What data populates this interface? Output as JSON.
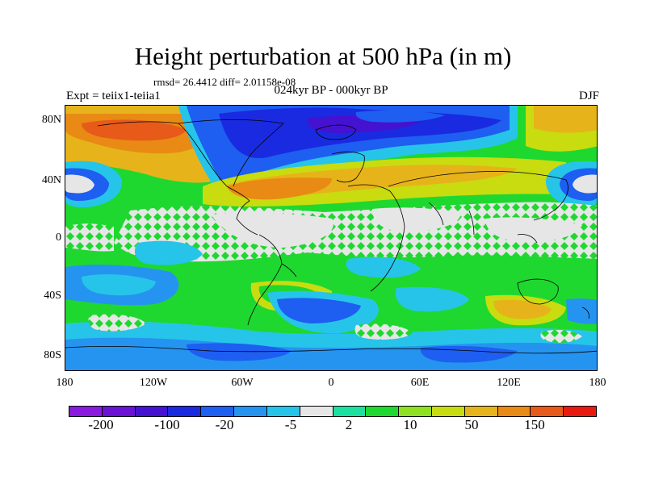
{
  "header": {
    "title": "Height perturbation at 500 hPa (in m)",
    "stats": "rmsd= 26.4412 diff= 2.01158e-08",
    "experiment": "Expt = teiix1-teiia1",
    "period": "024kyr BP - 000kyr BP",
    "season": "DJF"
  },
  "map": {
    "lat_labels": [
      "80N",
      "40N",
      "0",
      "40S",
      "80S"
    ],
    "lon_labels": [
      "180",
      "120W",
      "60W",
      "0",
      "60E",
      "120E",
      "180"
    ]
  },
  "colorbar": {
    "colors": [
      "#8a1ae0",
      "#6a12d6",
      "#4412d0",
      "#1a2ae0",
      "#1e5ef0",
      "#2594f0",
      "#27c4ea",
      "#e6e6e6",
      "#1ce0a0",
      "#1ed830",
      "#8ee020",
      "#c8dc10",
      "#e6b41a",
      "#e88a14",
      "#e85a1a",
      "#e81a10"
    ],
    "labels": [
      "-200",
      "-100",
      "-20",
      "-5",
      "2",
      "10",
      "50",
      "150"
    ]
  },
  "colors": {
    "neutral": "#e6e6e6",
    "map_background": "#1ed830"
  }
}
